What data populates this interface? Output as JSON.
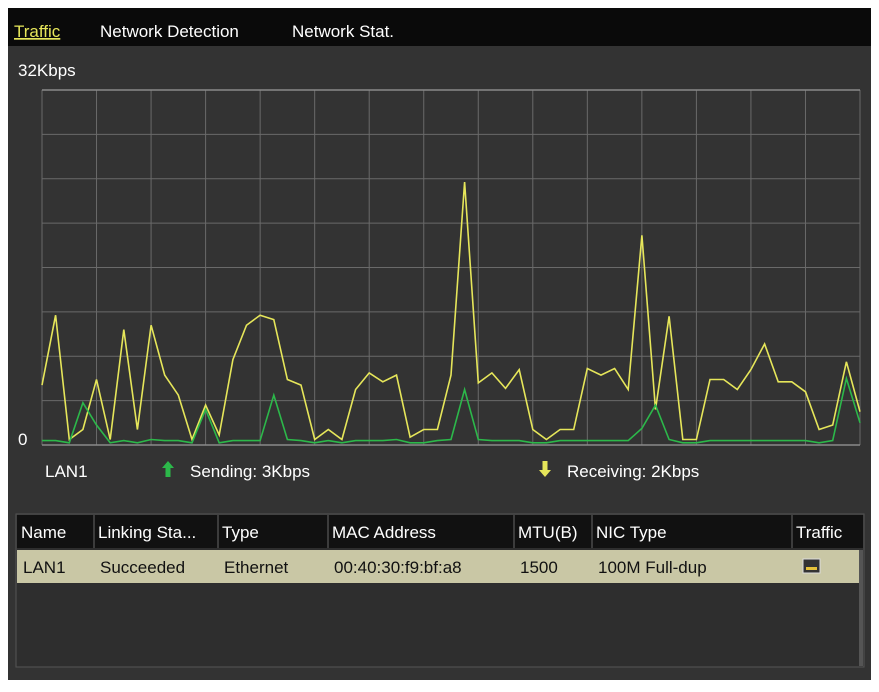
{
  "tabs": [
    "Traffic",
    "Network Detection",
    "Network Stat."
  ],
  "chart_data": {
    "type": "line",
    "interface": "LAN1",
    "ylim": [
      0,
      32
    ],
    "yticks": [
      0,
      {
        "value": 32,
        "label": "32Kbps"
      }
    ],
    "grid": true,
    "series": [
      {
        "name": "Sending: 3Kbps",
        "color": "#2cb84a",
        "values": [
          0.4,
          0.4,
          0.2,
          3.8,
          1.8,
          0.2,
          0.4,
          0.2,
          0.5,
          0.4,
          0.4,
          0.2,
          3.2,
          0.2,
          0.4,
          0.4,
          0.4,
          4.5,
          0.5,
          0.4,
          0.2,
          0.4,
          0.2,
          0.4,
          0.4,
          0.4,
          0.5,
          0.2,
          0.2,
          0.4,
          0.5,
          5.0,
          0.5,
          0.4,
          0.4,
          0.4,
          0.2,
          0.2,
          0.4,
          0.4,
          0.4,
          0.4,
          0.4,
          0.4,
          1.5,
          3.6,
          0.5,
          0.2,
          0.2,
          0.4,
          0.4,
          0.4,
          0.4,
          0.4,
          0.4,
          0.4,
          0.4,
          0.2,
          0.4,
          6.0,
          2.0
        ]
      },
      {
        "name": "Receiving: 2Kbps",
        "color": "#e6e65a",
        "values": [
          5.4,
          11.7,
          0.5,
          1.4,
          5.9,
          0.5,
          10.4,
          1.4,
          10.8,
          6.3,
          4.5,
          0.5,
          3.6,
          0.9,
          7.7,
          10.8,
          11.7,
          11.3,
          5.9,
          5.4,
          0.5,
          1.4,
          0.5,
          5.0,
          6.5,
          5.7,
          6.3,
          0.7,
          1.4,
          1.4,
          6.3,
          23.7,
          5.6,
          6.5,
          5.1,
          6.8,
          1.4,
          0.5,
          1.4,
          1.4,
          6.9,
          6.3,
          6.9,
          5.0,
          18.9,
          3.2,
          11.6,
          0.5,
          0.5,
          5.9,
          5.9,
          5.0,
          6.8,
          9.1,
          5.7,
          5.7,
          4.8,
          1.4,
          1.8,
          7.5,
          3.0
        ]
      }
    ]
  },
  "table": {
    "columns": [
      "Name",
      "Linking Sta...",
      "Type",
      "MAC Address",
      "MTU(B)",
      "NIC Type",
      "Traffic"
    ],
    "rows": [
      [
        "LAN1",
        "Succeeded",
        "Ethernet",
        "00:40:30:f9:bf:a8",
        "1500",
        "100M Full-dup"
      ]
    ]
  }
}
